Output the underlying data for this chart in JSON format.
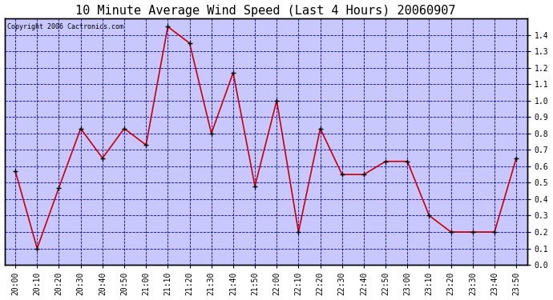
{
  "title": "10 Minute Average Wind Speed (Last 4 Hours) 20060907",
  "copyright": "Copyright 2006 Cactronics.com",
  "x_labels": [
    "20:00",
    "20:10",
    "20:20",
    "20:30",
    "20:40",
    "20:50",
    "21:00",
    "21:10",
    "21:20",
    "21:30",
    "21:40",
    "21:50",
    "22:00",
    "22:10",
    "22:20",
    "22:30",
    "22:40",
    "22:50",
    "23:00",
    "23:10",
    "23:20",
    "23:30",
    "23:40",
    "23:50"
  ],
  "y_values": [
    0.57,
    0.1,
    0.47,
    0.83,
    0.65,
    0.83,
    0.73,
    1.45,
    1.35,
    0.8,
    1.17,
    0.48,
    1.0,
    0.2,
    0.83,
    0.55,
    0.55,
    0.63,
    0.63,
    0.3,
    0.2,
    0.2,
    0.2,
    0.65
  ],
  "line_color": "#cc0000",
  "marker_color": "#000000",
  "fig_bg_color": "#ffffff",
  "plot_bg_color": "#c8c8ff",
  "grid_color": "#0000bb",
  "title_color": "#000000",
  "ylabel_values": [
    0.0,
    0.1,
    0.2,
    0.3,
    0.4,
    0.5,
    0.6,
    0.7,
    0.8,
    0.9,
    1.0,
    1.1,
    1.2,
    1.3,
    1.4
  ],
  "ylim": [
    0.0,
    1.5
  ],
  "title_fontsize": 11,
  "tick_fontsize": 7,
  "copyright_fontsize": 6
}
